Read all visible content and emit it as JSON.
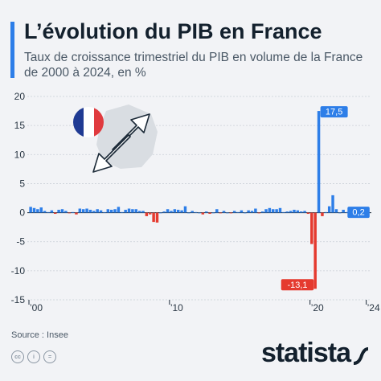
{
  "header": {
    "title": "L’évolution du PIB en France",
    "subtitle": "Taux de croissance trimestriel du PIB en volume de la France de 2000 à 2024, en %"
  },
  "footer": {
    "source": "Source : Insee",
    "brand": "statista",
    "license_icons": [
      "cc-icon",
      "by-icon",
      "nd-icon"
    ]
  },
  "colors": {
    "positive": "#2d7ee8",
    "negative": "#e53a2f",
    "accent": "#2d7ee8",
    "grid": "#c9cfd6"
  },
  "chart_data": {
    "type": "bar",
    "ylim": [
      -15,
      20
    ],
    "yticks": [
      20,
      15,
      10,
      5,
      0,
      -5,
      -10,
      -15
    ],
    "xtick_labels": [
      {
        "label": "’00",
        "index": 0
      },
      {
        "label": "’10",
        "index": 40
      },
      {
        "label": "’20",
        "index": 80
      },
      {
        "label": "’24",
        "index": 96
      }
    ],
    "grid": true,
    "x": [
      "2000 T1",
      "2000 T2",
      "2000 T3",
      "2000 T4",
      "2001 T1",
      "2001 T2",
      "2001 T3",
      "2001 T4",
      "2002 T1",
      "2002 T2",
      "2002 T3",
      "2002 T4",
      "2003 T1",
      "2003 T2",
      "2003 T3",
      "2003 T4",
      "2004 T1",
      "2004 T2",
      "2004 T3",
      "2004 T4",
      "2005 T1",
      "2005 T2",
      "2005 T3",
      "2005 T4",
      "2006 T1",
      "2006 T2",
      "2006 T3",
      "2006 T4",
      "2007 T1",
      "2007 T2",
      "2007 T3",
      "2007 T4",
      "2008 T1",
      "2008 T2",
      "2008 T3",
      "2008 T4",
      "2009 T1",
      "2009 T2",
      "2009 T3",
      "2009 T4",
      "2010 T1",
      "2010 T2",
      "2010 T3",
      "2010 T4",
      "2011 T1",
      "2011 T2",
      "2011 T3",
      "2011 T4",
      "2012 T1",
      "2012 T2",
      "2012 T3",
      "2012 T4",
      "2013 T1",
      "2013 T2",
      "2013 T3",
      "2013 T4",
      "2014 T1",
      "2014 T2",
      "2014 T3",
      "2014 T4",
      "2015 T1",
      "2015 T2",
      "2015 T3",
      "2015 T4",
      "2016 T1",
      "2016 T2",
      "2016 T3",
      "2016 T4",
      "2017 T1",
      "2017 T2",
      "2017 T3",
      "2017 T4",
      "2018 T1",
      "2018 T2",
      "2018 T3",
      "2018 T4",
      "2019 T1",
      "2019 T2",
      "2019 T3",
      "2019 T4",
      "2020 T1",
      "2020 T2",
      "2020 T3",
      "2020 T4",
      "2021 T1",
      "2021 T2",
      "2021 T3",
      "2021 T4",
      "2022 T1",
      "2022 T2",
      "2022 T3",
      "2022 T4",
      "2023 T1",
      "2023 T2",
      "2023 T3",
      "2023 T4",
      "2024 T1"
    ],
    "values": [
      1.0,
      0.8,
      0.6,
      0.9,
      0.3,
      0.1,
      0.4,
      -0.2,
      0.5,
      0.6,
      0.3,
      -0.1,
      0.1,
      -0.3,
      0.7,
      0.6,
      0.7,
      0.5,
      0.3,
      0.6,
      0.4,
      0.1,
      0.6,
      0.5,
      0.6,
      1.0,
      0.1,
      0.5,
      0.7,
      0.6,
      0.6,
      0.3,
      0.3,
      -0.6,
      -0.3,
      -1.6,
      -1.7,
      0.0,
      0.2,
      0.6,
      0.3,
      0.6,
      0.5,
      0.4,
      1.1,
      0.0,
      0.3,
      0.1,
      0.0,
      -0.3,
      0.2,
      -0.2,
      0.0,
      0.6,
      -0.1,
      0.3,
      0.0,
      -0.1,
      0.3,
      0.1,
      0.4,
      0.0,
      0.4,
      0.3,
      0.7,
      -0.1,
      0.2,
      0.6,
      0.8,
      0.6,
      0.6,
      0.8,
      0.1,
      0.2,
      0.3,
      0.5,
      0.4,
      0.2,
      0.3,
      -0.2,
      -5.4,
      -13.1,
      17.5,
      -0.6,
      0.1,
      1.1,
      3.0,
      0.6,
      0.0,
      0.5,
      0.1,
      0.0,
      0.1,
      0.6,
      0.1,
      0.4,
      0.2
    ],
    "data_labels": [
      {
        "index": 81,
        "text": "-13,1"
      },
      {
        "index": 82,
        "text": "17,5"
      },
      {
        "index": 96,
        "text": "0,2"
      }
    ]
  }
}
